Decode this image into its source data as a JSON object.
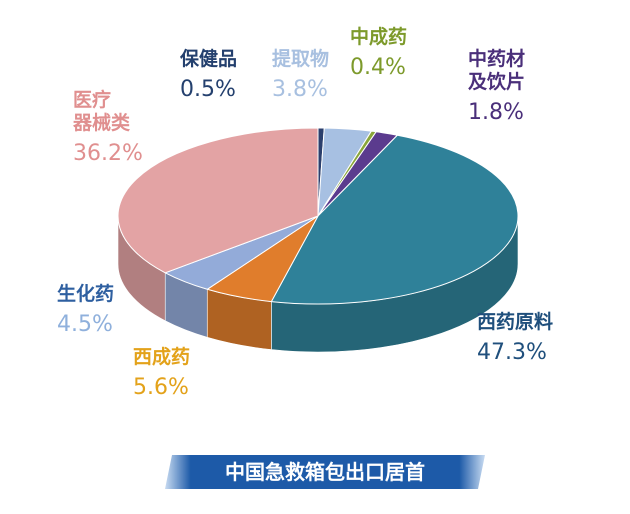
{
  "chart_data": {
    "type": "pie3d",
    "title": "中国急救箱包出口居首",
    "categories": [
      "保健品",
      "提取物",
      "中成药",
      "中药材\n及饮片",
      "西药原料",
      "西成药",
      "生化药",
      "医疗\n器械类"
    ],
    "values": [
      0.5,
      3.8,
      0.4,
      1.8,
      47.3,
      5.6,
      4.5,
      36.2
    ],
    "value_labels": [
      "0.5%",
      "3.8%",
      "0.4%",
      "1.8%",
      "47.3%",
      "5.6%",
      "4.5%",
      "36.2%"
    ],
    "colors": [
      "#2b3f6c",
      "#a7c0e2",
      "#8aa63a",
      "#5b3b8e",
      "#2f8199",
      "#e07d2c",
      "#93abd9",
      "#e3a3a4"
    ]
  }
}
